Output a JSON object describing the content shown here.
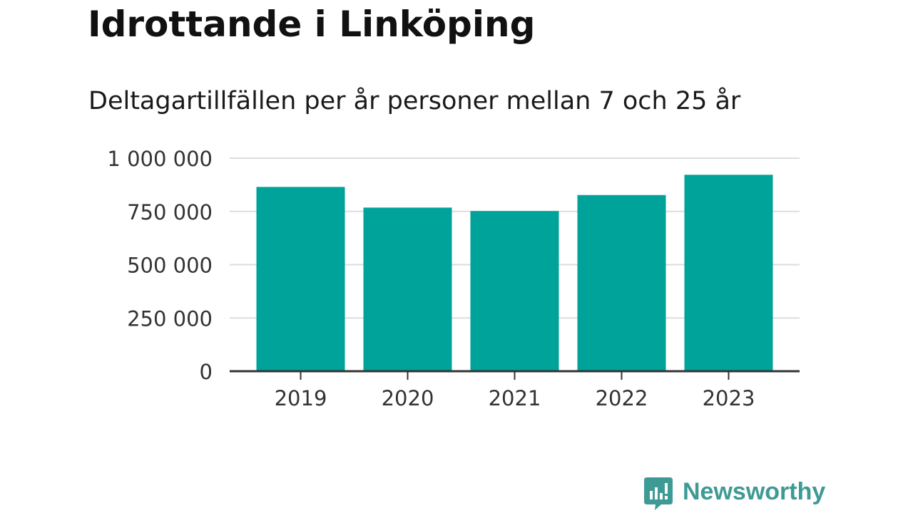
{
  "chart_data": {
    "type": "bar",
    "title": "Idrottande i Linköping",
    "subtitle": "Deltagartillfällen per år personer mellan 7 och 25 år",
    "categories": [
      "2019",
      "2020",
      "2021",
      "2022",
      "2023"
    ],
    "values": [
      865000,
      768000,
      752000,
      827000,
      922000
    ],
    "ylim": [
      0,
      1000000
    ],
    "yticks": [
      0,
      250000,
      500000,
      750000,
      1000000
    ],
    "ytick_labels": [
      "0",
      "250 000",
      "500 000",
      "750 000",
      "1 000 000"
    ],
    "xlabel": "",
    "ylabel": "",
    "grid": true,
    "bar_color": "#00a39a"
  },
  "branding": {
    "name": "Newsworthy",
    "color": "#3d9a95"
  }
}
